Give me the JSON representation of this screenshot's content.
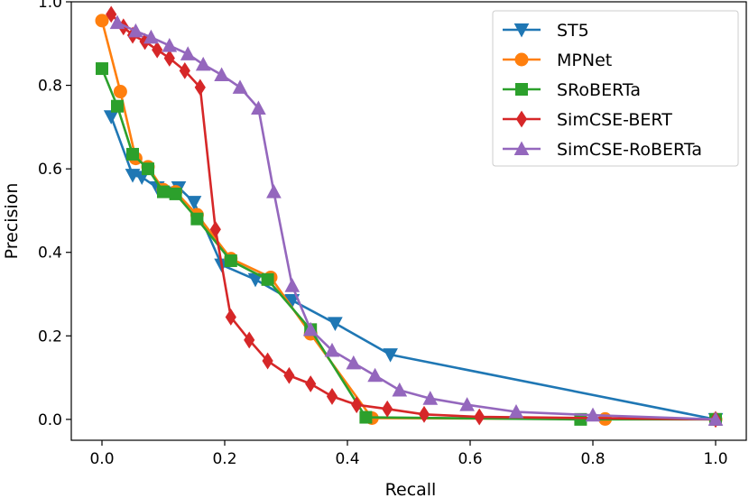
{
  "chart_data": {
    "type": "line",
    "title": "",
    "xlabel": "Recall",
    "ylabel": "Precision",
    "xlim": [
      -0.05,
      1.05
    ],
    "ylim": [
      -0.05,
      1.0
    ],
    "xticks": [
      0.0,
      0.2,
      0.4,
      0.6,
      0.8,
      1.0
    ],
    "xtick_labels": [
      "0.0",
      "0.2",
      "0.4",
      "0.6",
      "0.8",
      "1.0"
    ],
    "yticks": [
      0.0,
      0.2,
      0.4,
      0.6,
      0.8,
      1.0
    ],
    "ytick_labels": [
      "0.0",
      "0.2",
      "0.4",
      "0.6",
      "0.8",
      "1.0"
    ],
    "grid": false,
    "legend_position": "top-right",
    "series": [
      {
        "name": "ST5",
        "color": "#1f77b4",
        "marker": "triangle-down",
        "x": [
          0.015,
          0.05,
          0.065,
          0.09,
          0.125,
          0.15,
          0.195,
          0.25,
          0.31,
          0.38,
          0.47,
          1.0
        ],
        "y": [
          0.725,
          0.585,
          0.58,
          0.555,
          0.555,
          0.52,
          0.37,
          0.335,
          0.285,
          0.23,
          0.155,
          0.0
        ]
      },
      {
        "name": "MPNet",
        "color": "#ff7f0e",
        "marker": "circle",
        "x": [
          0.0,
          0.03,
          0.055,
          0.075,
          0.1,
          0.12,
          0.155,
          0.21,
          0.275,
          0.34,
          0.44,
          0.82,
          1.0
        ],
        "y": [
          0.955,
          0.785,
          0.625,
          0.605,
          0.55,
          0.545,
          0.49,
          0.385,
          0.34,
          0.205,
          0.003,
          0.001,
          0.0
        ]
      },
      {
        "name": "SRoBERTa",
        "color": "#2ca02c",
        "marker": "square",
        "x": [
          0.0,
          0.025,
          0.05,
          0.075,
          0.1,
          0.12,
          0.155,
          0.21,
          0.27,
          0.34,
          0.43,
          0.78,
          1.0
        ],
        "y": [
          0.84,
          0.75,
          0.635,
          0.6,
          0.545,
          0.54,
          0.48,
          0.38,
          0.335,
          0.215,
          0.005,
          0.0,
          0.0
        ]
      },
      {
        "name": "SimCSE-BERT",
        "color": "#d62728",
        "marker": "diamond",
        "x": [
          0.015,
          0.035,
          0.05,
          0.07,
          0.09,
          0.11,
          0.135,
          0.16,
          0.185,
          0.21,
          0.24,
          0.27,
          0.305,
          0.34,
          0.375,
          0.415,
          0.465,
          0.525,
          0.615,
          1.0
        ],
        "y": [
          0.97,
          0.94,
          0.92,
          0.905,
          0.885,
          0.865,
          0.835,
          0.795,
          0.455,
          0.245,
          0.19,
          0.14,
          0.105,
          0.085,
          0.055,
          0.035,
          0.025,
          0.012,
          0.006,
          0.0
        ]
      },
      {
        "name": "SimCSE-RoBERTa",
        "color": "#9467bd",
        "marker": "triangle-up",
        "x": [
          0.025,
          0.055,
          0.08,
          0.11,
          0.14,
          0.165,
          0.195,
          0.225,
          0.255,
          0.28,
          0.31,
          0.34,
          0.375,
          0.41,
          0.445,
          0.485,
          0.535,
          0.595,
          0.675,
          0.8,
          1.0
        ],
        "y": [
          0.95,
          0.93,
          0.915,
          0.895,
          0.875,
          0.85,
          0.825,
          0.795,
          0.745,
          0.545,
          0.32,
          0.215,
          0.165,
          0.135,
          0.105,
          0.07,
          0.05,
          0.035,
          0.018,
          0.01,
          0.0
        ]
      }
    ]
  }
}
